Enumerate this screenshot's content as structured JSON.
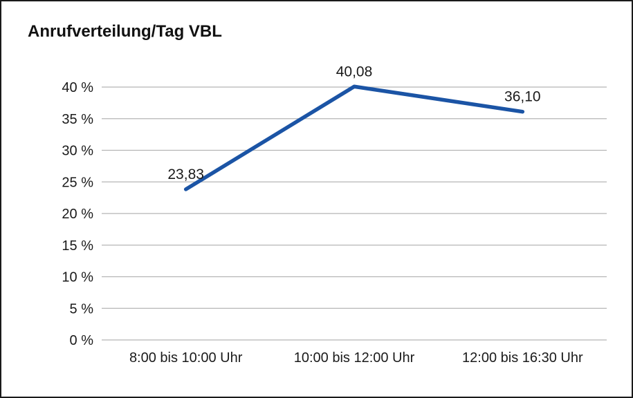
{
  "chart_data": {
    "type": "line",
    "title": "Anrufverteilung/Tag VBL",
    "categories": [
      "8:00 bis 10:00 Uhr",
      "10:00 bis 12:00 Uhr",
      "12:00 bis 16:30 Uhr"
    ],
    "values": [
      23.83,
      40.08,
      36.1
    ],
    "value_labels": [
      "23,83",
      "40,08",
      "36,10"
    ],
    "xlabel": "",
    "ylabel": "",
    "ylim": [
      0,
      40
    ],
    "y_ticks": [
      0,
      5,
      10,
      15,
      20,
      25,
      30,
      35,
      40
    ],
    "y_tick_suffix": " %",
    "grid": true,
    "legend_position": "none",
    "line_color": "#1b54a5",
    "grid_color": "#b4b4b4",
    "text_color": "#1a1a1a",
    "frame_color": "#1a1a1a"
  }
}
